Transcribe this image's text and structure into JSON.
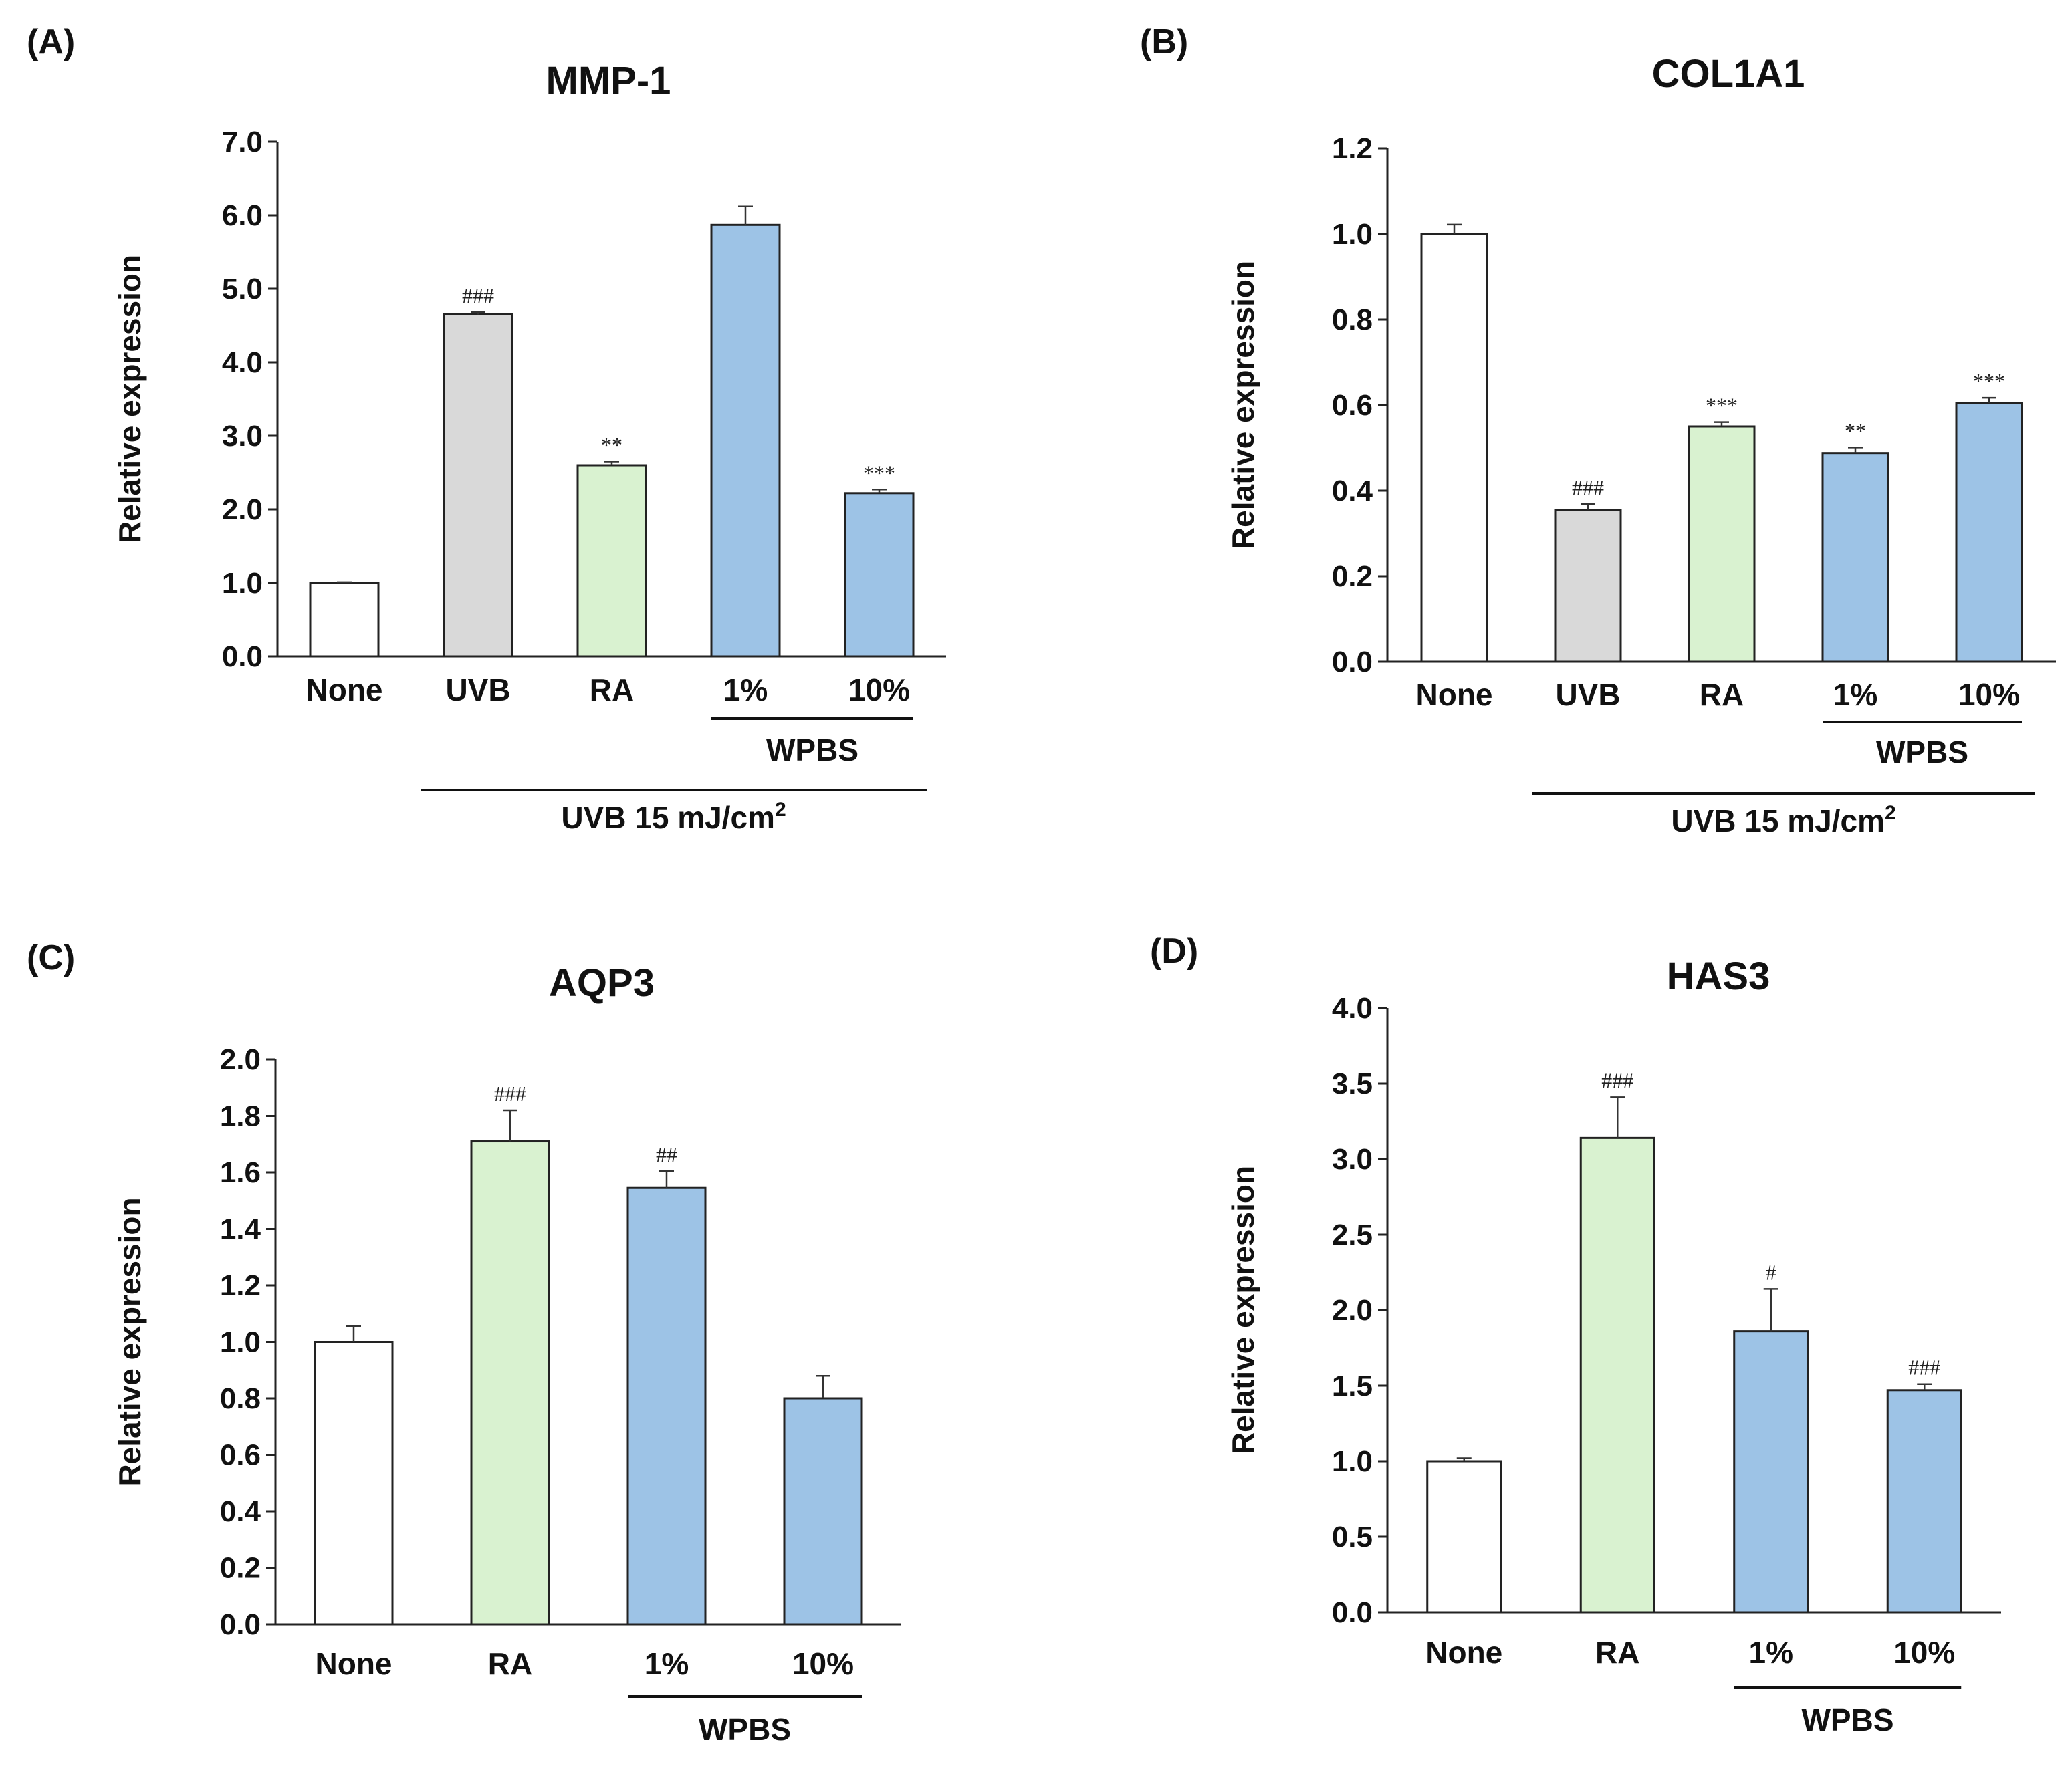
{
  "colors": {
    "none": "#ffffff",
    "uvb": "#d9d9d9",
    "ra": "#d9f2d0",
    "wpbs": "#9dc3e6",
    "axis": "#222222"
  },
  "chart_data": [
    {
      "panel": "(A)",
      "type": "bar",
      "title": "MMP-1",
      "ylabel": "Relative  expression",
      "xlabel": "",
      "ylim": [
        0,
        7
      ],
      "ytick_step": 1.0,
      "ytick_decimals": 1,
      "grid": false,
      "categories": [
        "None",
        "UVB",
        "RA",
        "1%",
        "10%"
      ],
      "values": [
        1.0,
        4.65,
        2.6,
        5.87,
        2.22
      ],
      "errors": [
        0.01,
        0.03,
        0.05,
        0.25,
        0.05
      ],
      "annotations": [
        "",
        "###",
        "**",
        "",
        "***"
      ],
      "bar_colors": [
        "none",
        "uvb",
        "ra",
        "wpbs",
        "wpbs"
      ],
      "groups": [
        {
          "label": "WPBS",
          "from": 3,
          "to": 4,
          "level": 1
        },
        {
          "label": "UVB 15 mJ/cm",
          "superscript": "2",
          "from": 1,
          "to": 4,
          "level": 2
        }
      ]
    },
    {
      "panel": "(B)",
      "type": "bar",
      "title": "COL1A1",
      "ylabel": "Relative expression",
      "xlabel": "",
      "ylim": [
        0,
        1.2
      ],
      "ytick_step": 0.2,
      "ytick_decimals": 1,
      "grid": false,
      "categories": [
        "None",
        "UVB",
        "RA",
        "1%",
        "10%"
      ],
      "values": [
        1.0,
        0.355,
        0.55,
        0.488,
        0.605
      ],
      "errors": [
        0.022,
        0.014,
        0.01,
        0.013,
        0.012
      ],
      "annotations": [
        "",
        "###",
        "***",
        "**",
        "***"
      ],
      "bar_colors": [
        "none",
        "uvb",
        "ra",
        "wpbs",
        "wpbs"
      ],
      "groups": [
        {
          "label": "WPBS",
          "from": 3,
          "to": 4,
          "level": 1
        },
        {
          "label": "UVB 15 mJ/cm",
          "superscript": "2",
          "from": 1,
          "to": 4,
          "level": 2
        }
      ]
    },
    {
      "panel": "(C)",
      "type": "bar",
      "title": "AQP3",
      "ylabel": "Relative expression",
      "xlabel": "",
      "ylim": [
        0,
        2.0
      ],
      "ytick_step": 0.2,
      "ytick_decimals": 1,
      "grid": false,
      "categories": [
        "None",
        "RA",
        "1%",
        "10%"
      ],
      "values": [
        1.0,
        1.71,
        1.545,
        0.8
      ],
      "errors": [
        0.055,
        0.11,
        0.06,
        0.08
      ],
      "annotations": [
        "",
        "###",
        "##",
        ""
      ],
      "bar_colors": [
        "none",
        "ra",
        "wpbs",
        "wpbs"
      ],
      "groups": [
        {
          "label": "WPBS",
          "from": 2,
          "to": 3,
          "level": 1
        }
      ]
    },
    {
      "panel": "(D)",
      "type": "bar",
      "title": "HAS3",
      "ylabel": "Relative expression",
      "xlabel": "",
      "ylim": [
        0,
        4.0
      ],
      "ytick_step": 0.5,
      "ytick_decimals": 1,
      "grid": false,
      "categories": [
        "None",
        "RA",
        "1%",
        "10%"
      ],
      "values": [
        1.0,
        3.14,
        1.86,
        1.47
      ],
      "errors": [
        0.02,
        0.27,
        0.28,
        0.04
      ],
      "annotations": [
        "",
        "###",
        "#",
        "###"
      ],
      "bar_colors": [
        "none",
        "ra",
        "wpbs",
        "wpbs"
      ],
      "groups": [
        {
          "label": "WPBS",
          "from": 2,
          "to": 3,
          "level": 1
        }
      ]
    }
  ]
}
